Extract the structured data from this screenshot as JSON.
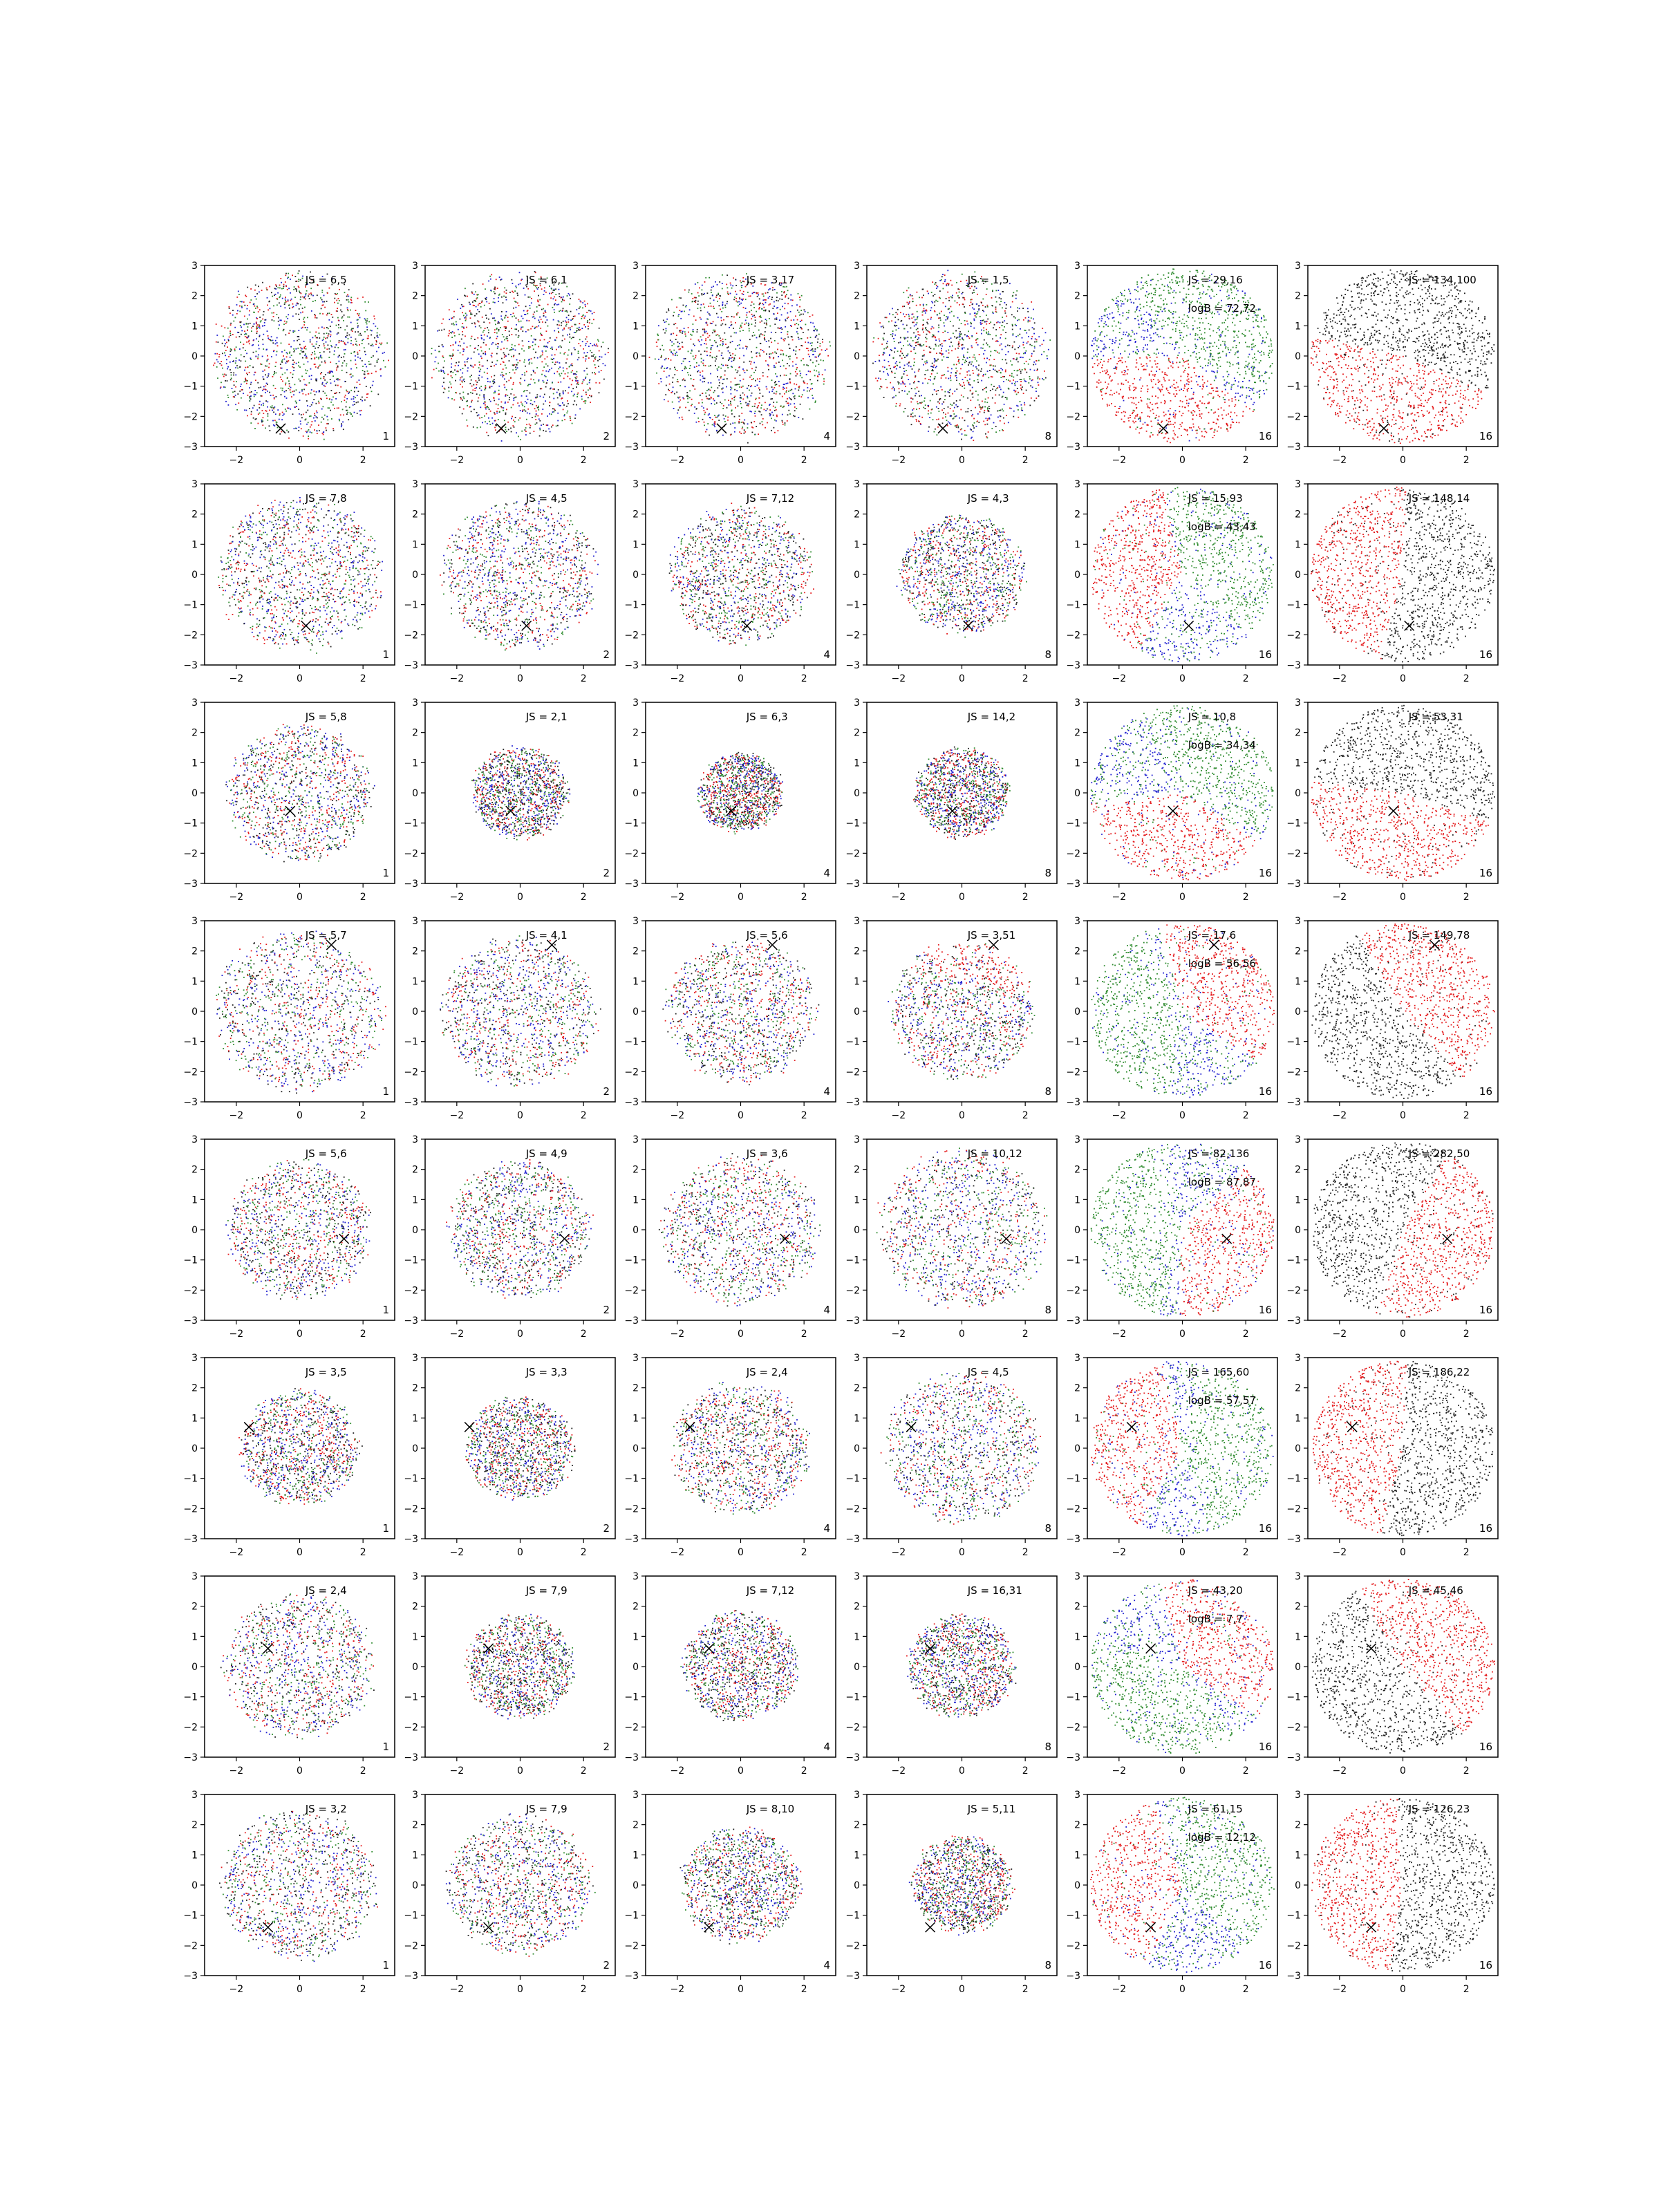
{
  "chart_data": {
    "type": "scatter",
    "layout": {
      "rows": 8,
      "cols": 6
    },
    "axes": {
      "xlim": [
        -3,
        3
      ],
      "ylim": [
        -3,
        3
      ],
      "xticks": [
        -2,
        0,
        2
      ],
      "xtick_labels": [
        "−2",
        "0",
        "2"
      ],
      "yticks": [
        -3,
        -2,
        -1,
        0,
        1,
        2,
        3
      ],
      "ytick_labels": [
        "−3",
        "−2",
        "−1",
        "0",
        "1",
        "2",
        "3"
      ]
    },
    "colors": {
      "red": "#e41a1c",
      "green": "#2e8b2e",
      "blue": "#1f1fd0",
      "black": "#222222",
      "marker": "#000000"
    },
    "column_corner_labels": [
      "1",
      "2",
      "4",
      "8",
      "16",
      "16"
    ],
    "rows": [
      {
        "x_marker": [
          -0.6,
          -2.4
        ],
        "spread": [
          2.9,
          2.9,
          2.9,
          2.9
        ],
        "js_labels": [
          "JS = 6,5",
          "JS = 6,1",
          "JS = 3,17",
          "JS = 1,5",
          "JS = 29,16",
          "JS = 134,100"
        ],
        "logb_label": "logB = 72,72",
        "red_dir": -1.9,
        "green_dir": 0.9
      },
      {
        "x_marker": [
          0.2,
          -1.7
        ],
        "spread": [
          2.7,
          2.6,
          2.4,
          2.1
        ],
        "js_labels": [
          "JS = 7,8",
          "JS = 4,5",
          "JS = 7,12",
          "JS = 4,3",
          "JS = 15,93",
          "JS = 148,14"
        ],
        "logb_label": "logB = 43,43",
        "red_dir": 3.0,
        "green_dir": 0.5
      },
      {
        "x_marker": [
          -0.3,
          -0.6
        ],
        "spread": [
          2.4,
          1.6,
          1.4,
          1.6
        ],
        "js_labels": [
          "JS = 5,8",
          "JS = 2,1",
          "JS = 6,3",
          "JS = 14,2",
          "JS = 10,8",
          "JS = 53,31"
        ],
        "logb_label": "logB = 34,34",
        "red_dir": -1.8,
        "green_dir": 0.8
      },
      {
        "x_marker": [
          1.0,
          2.2
        ],
        "spread": [
          2.8,
          2.6,
          2.5,
          2.4
        ],
        "js_labels": [
          "JS = 5,7",
          "JS = 4,1",
          "JS = 5,6",
          "JS = 3,51",
          "JS = 17,6",
          "JS = 149,78"
        ],
        "logb_label": "logB = 56,56",
        "red_dir": 0.6,
        "green_dir": 3.3
      },
      {
        "x_marker": [
          1.4,
          -0.3
        ],
        "spread": [
          2.4,
          2.4,
          2.6,
          2.8
        ],
        "js_labels": [
          "JS = 5,6",
          "JS = 4,9",
          "JS = 3,6",
          "JS = 10,12",
          "JS = 82,136",
          "JS = 282,50"
        ],
        "logb_label": "logB = 87,87",
        "red_dir": -0.4,
        "green_dir": 3.2
      },
      {
        "x_marker": [
          -1.6,
          0.7
        ],
        "spread": [
          2.0,
          1.8,
          2.3,
          2.6
        ],
        "js_labels": [
          "JS = 3,5",
          "JS = 3,3",
          "JS = 2,4",
          "JS = 4,5",
          "JS = 165,60",
          "JS = 186,22"
        ],
        "logb_label": "logB = 57,57",
        "red_dir": 3.0,
        "green_dir": 0.0
      },
      {
        "x_marker": [
          -1.0,
          0.6
        ],
        "spread": [
          2.5,
          1.8,
          1.9,
          1.8
        ],
        "js_labels": [
          "JS = 2,4",
          "JS = 7,9",
          "JS = 7,12",
          "JS = 16,31",
          "JS = 43,20",
          "JS = 45,46"
        ],
        "logb_label": "logB = 7,7",
        "red_dir": 0.6,
        "green_dir": -2.2
      },
      {
        "x_marker": [
          -1.0,
          -1.4
        ],
        "spread": [
          2.6,
          2.4,
          2.0,
          1.7
        ],
        "js_labels": [
          "JS = 3,2",
          "JS = 7,9",
          "JS = 8,10",
          "JS = 5,11",
          "JS = 61,15",
          "JS = 126,23"
        ],
        "logb_label": "logB = 12,12",
        "red_dir": 3.1,
        "green_dir": 0.5
      }
    ]
  }
}
